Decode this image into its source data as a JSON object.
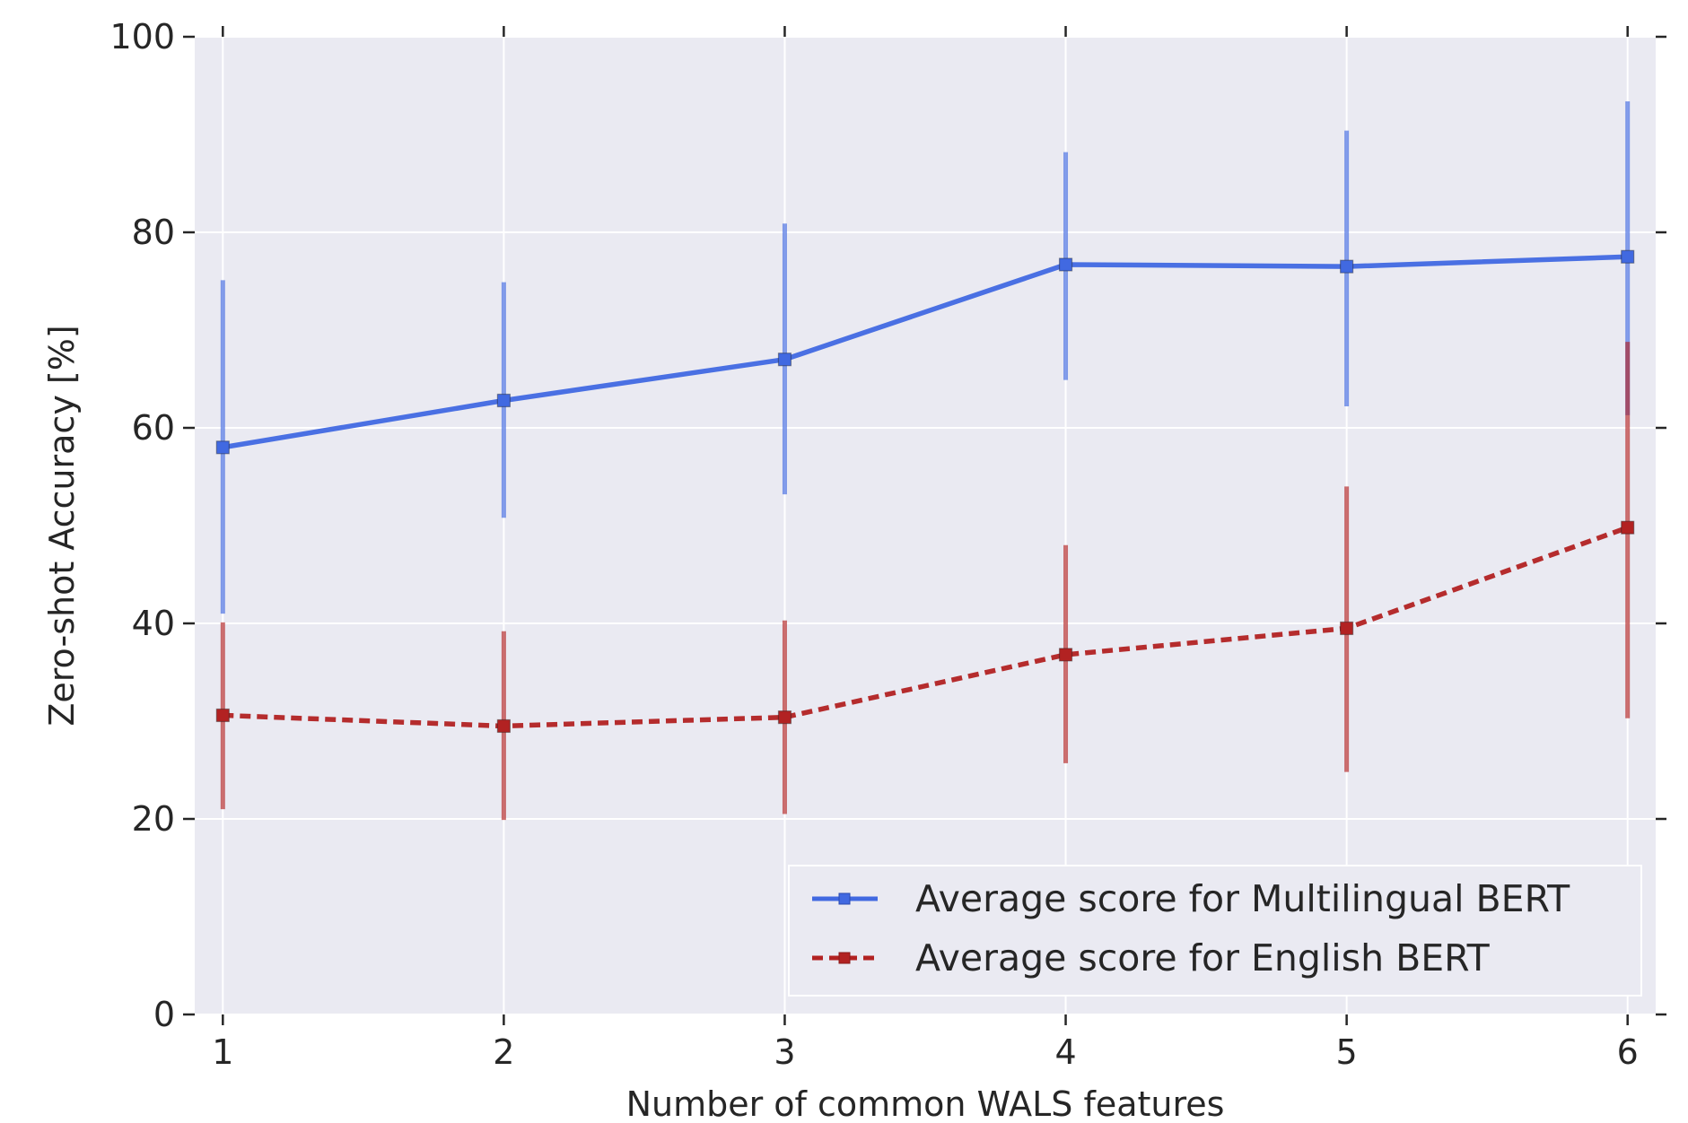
{
  "chart_data": {
    "type": "line",
    "xlabel": "Number of common WALS features",
    "ylabel": "Zero-shot Accuracy [%]",
    "x": [
      1,
      2,
      3,
      4,
      5,
      6
    ],
    "xlim": [
      0.9,
      6.1
    ],
    "ylim": [
      0,
      100
    ],
    "xticks": [
      1,
      2,
      3,
      4,
      5,
      6
    ],
    "yticks": [
      0,
      20,
      40,
      60,
      80,
      100
    ],
    "grid": true,
    "legend_position": "lower-right",
    "series": [
      {
        "name": "Average score for Multilingual BERT",
        "color": "#4169e1",
        "linestyle": "solid",
        "marker": "square",
        "values": [
          58,
          62.8,
          67,
          76.7,
          76.5,
          77.5
        ],
        "error_low": [
          41,
          50.8,
          53.2,
          64.9,
          62.2,
          61.3
        ],
        "error_high": [
          75.1,
          74.9,
          80.9,
          88.2,
          90.4,
          93.4
        ]
      },
      {
        "name": "Average score for English BERT",
        "color": "#b22222",
        "linestyle": "dashed",
        "marker": "square",
        "values": [
          30.6,
          29.5,
          30.4,
          36.8,
          39.5,
          49.8
        ],
        "error_low": [
          21,
          19.9,
          20.5,
          25.7,
          24.8,
          30.3
        ],
        "error_high": [
          40.1,
          39.2,
          40.3,
          48,
          54,
          68.8
        ]
      }
    ],
    "colors": {
      "plot_background": "#eaeaf2",
      "grid": "#ffffff",
      "text": "#262626"
    }
  }
}
